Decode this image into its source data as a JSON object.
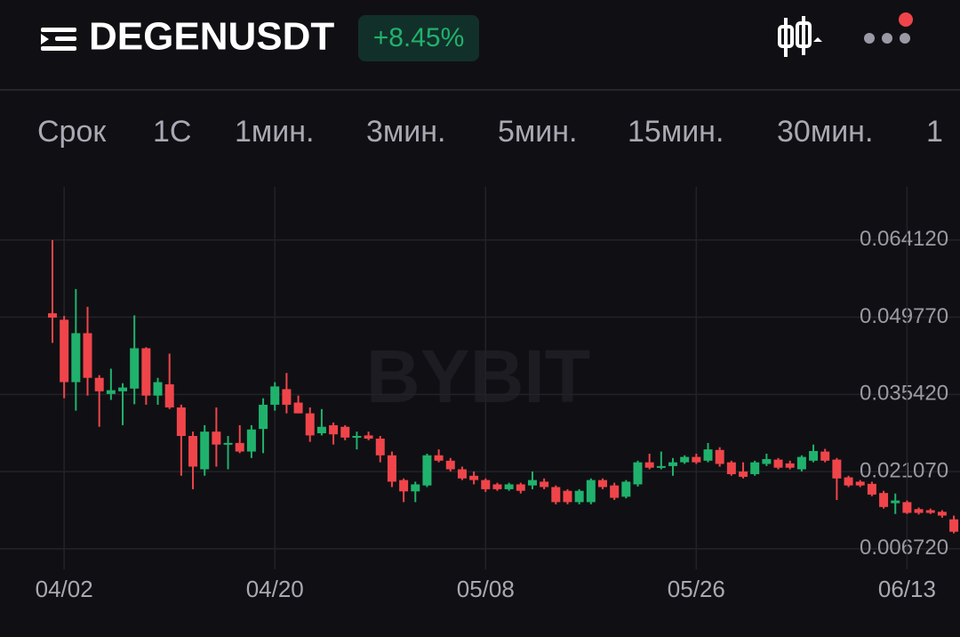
{
  "header": {
    "title": "DEGENUSDT",
    "change": "+8.45%"
  },
  "tabs": [
    "Срок",
    "1С",
    "1мин.",
    "3мин.",
    "5мин.",
    "15мин.",
    "30мин.",
    "1"
  ],
  "watermark": "BYBIT",
  "chart_data": {
    "type": "candlestick",
    "up_color": "#20b26c",
    "down_color": "#ef454a",
    "categories": [
      null,
      "04/02",
      null,
      null,
      null,
      null,
      null,
      null,
      null,
      null,
      null,
      null,
      null,
      null,
      null,
      null,
      null,
      null,
      null,
      "04/20",
      null,
      null,
      null,
      null,
      null,
      null,
      null,
      null,
      null,
      null,
      null,
      null,
      null,
      null,
      null,
      null,
      null,
      "05/08",
      null,
      null,
      null,
      null,
      null,
      null,
      null,
      null,
      null,
      null,
      null,
      null,
      null,
      null,
      null,
      null,
      null,
      "05/26",
      null,
      null,
      null,
      null,
      null,
      null,
      null,
      null,
      null,
      null,
      null,
      null,
      null,
      null,
      null,
      null,
      null,
      "06/13",
      null,
      null,
      null,
      null
    ],
    "open": [
      0.0505,
      0.0493,
      0.0377,
      0.0468,
      0.0385,
      0.0355,
      0.036,
      0.0365,
      0.044,
      0.0352,
      0.0373,
      0.033,
      0.0277,
      0.0215,
      0.0285,
      0.0261,
      0.0264,
      0.0248,
      0.029,
      0.0335,
      0.0364,
      0.0339,
      0.0319,
      0.0282,
      0.0297,
      0.0294,
      0.0274,
      0.0278,
      0.0272,
      0.0241,
      0.0195,
      0.0174,
      0.0185,
      0.0241,
      0.0231,
      0.0215,
      0.0203,
      0.0195,
      0.0187,
      0.0178,
      0.0187,
      0.0185,
      0.0192,
      0.0182,
      0.0175,
      0.0154,
      0.0154,
      0.0195,
      0.0185,
      0.0164,
      0.0187,
      0.0228,
      0.0218,
      0.0221,
      0.0228,
      0.0238,
      0.0231,
      0.0251,
      0.0228,
      0.0211,
      0.0206,
      0.0225,
      0.0233,
      0.0226,
      0.0215,
      0.0231,
      0.0248,
      0.0233,
      0.02,
      0.0192,
      0.0188,
      0.0171,
      0.0152,
      0.0154,
      0.0141,
      0.0139,
      0.0136,
      0.0122
    ],
    "high": [
      0.0641,
      0.05,
      0.055,
      0.0517,
      0.039,
      0.0402,
      0.0375,
      0.0501,
      0.0442,
      0.0385,
      0.043,
      0.0335,
      0.0285,
      0.0297,
      0.033,
      0.0277,
      0.0297,
      0.0297,
      0.0347,
      0.0377,
      0.0394,
      0.0352,
      0.033,
      0.0327,
      0.0302,
      0.0297,
      0.0285,
      0.0285,
      0.0277,
      0.0248,
      0.0198,
      0.0192,
      0.0244,
      0.0252,
      0.0236,
      0.022,
      0.0211,
      0.0198,
      0.019,
      0.019,
      0.019,
      0.0211,
      0.0198,
      0.0185,
      0.0178,
      0.0178,
      0.0198,
      0.0198,
      0.019,
      0.0195,
      0.0231,
      0.0244,
      0.0248,
      0.0236,
      0.0241,
      0.0244,
      0.0264,
      0.0256,
      0.0231,
      0.0228,
      0.0231,
      0.0244,
      0.0236,
      0.0231,
      0.0241,
      0.0261,
      0.0253,
      0.0236,
      0.0203,
      0.0195,
      0.0192,
      0.0175,
      0.017,
      0.0157,
      0.0144,
      0.0142,
      0.0139,
      0.0129
    ],
    "low": [
      0.045,
      0.0347,
      0.0324,
      0.0352,
      0.0294,
      0.0344,
      0.0297,
      0.0336,
      0.0335,
      0.0335,
      0.0327,
      0.0203,
      0.0178,
      0.0203,
      0.022,
      0.0215,
      0.0245,
      0.0236,
      0.0245,
      0.0324,
      0.0319,
      0.0319,
      0.0266,
      0.0278,
      0.0261,
      0.0269,
      0.0252,
      0.0269,
      0.0228,
      0.0182,
      0.0154,
      0.0154,
      0.0182,
      0.0228,
      0.0211,
      0.0195,
      0.0187,
      0.0173,
      0.0175,
      0.0175,
      0.017,
      0.0178,
      0.0178,
      0.015,
      0.015,
      0.015,
      0.015,
      0.0178,
      0.0158,
      0.0161,
      0.0183,
      0.0215,
      0.0215,
      0.0203,
      0.0225,
      0.0225,
      0.0228,
      0.022,
      0.0203,
      0.0198,
      0.0203,
      0.0221,
      0.0215,
      0.0215,
      0.0211,
      0.0228,
      0.0228,
      0.0158,
      0.0182,
      0.0182,
      0.0165,
      0.0142,
      0.0132,
      0.0132,
      0.0131,
      0.0132,
      0.0125,
      0.0096
    ],
    "close": [
      0.0497,
      0.0377,
      0.0468,
      0.0385,
      0.036,
      0.0362,
      0.0367,
      0.044,
      0.0352,
      0.0377,
      0.033,
      0.0277,
      0.022,
      0.0285,
      0.0261,
      0.0264,
      0.0248,
      0.0289,
      0.0335,
      0.0369,
      0.0335,
      0.0319,
      0.0278,
      0.0294,
      0.028,
      0.0274,
      0.0277,
      0.0272,
      0.0241,
      0.0192,
      0.0174,
      0.0187,
      0.0241,
      0.0231,
      0.0215,
      0.0198,
      0.0195,
      0.0178,
      0.0178,
      0.0187,
      0.0175,
      0.0195,
      0.0182,
      0.0154,
      0.0154,
      0.0175,
      0.0195,
      0.0182,
      0.0162,
      0.0192,
      0.0228,
      0.0218,
      0.0221,
      0.0228,
      0.0238,
      0.0228,
      0.0252,
      0.0225,
      0.0206,
      0.0201,
      0.0228,
      0.0234,
      0.0218,
      0.0218,
      0.0238,
      0.0249,
      0.0231,
      0.0198,
      0.0185,
      0.0185,
      0.0168,
      0.0145,
      0.0157,
      0.0134,
      0.0134,
      0.0134,
      0.0129,
      0.0099
    ],
    "ylim": [
      0.0029,
      0.074
    ],
    "yticks": [
      {
        "value": 0.06412,
        "label": "0.064120"
      },
      {
        "value": 0.04977,
        "label": "0.049770"
      },
      {
        "value": 0.03542,
        "label": "0.035420"
      },
      {
        "value": 0.02107,
        "label": "0.021070"
      },
      {
        "value": 0.00672,
        "label": "0.006720"
      }
    ],
    "grid": true
  }
}
